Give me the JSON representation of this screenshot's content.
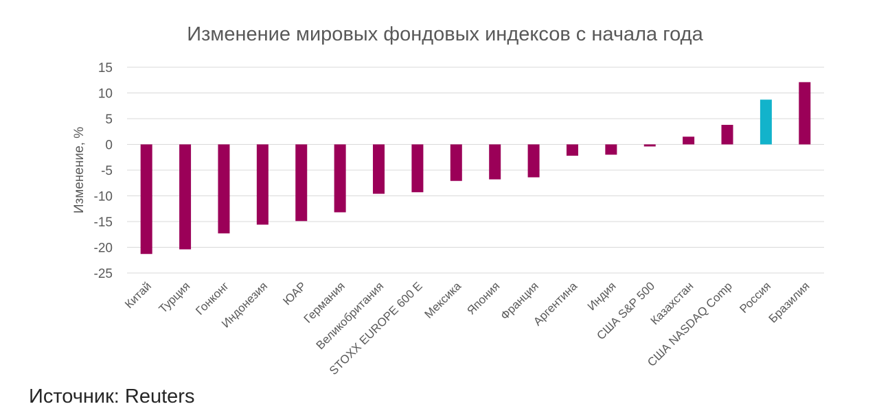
{
  "chart_data": {
    "type": "bar",
    "title": "Изменение мировых фондовых индексов с начала года",
    "xlabel": "",
    "ylabel": "Изменение, %",
    "ylim": [
      -25,
      15
    ],
    "yticks": [
      15,
      10,
      5,
      0,
      -5,
      -10,
      -15,
      -20,
      -25
    ],
    "grid": true,
    "categories": [
      "Китай",
      "Турция",
      "Гонконг",
      "Индонезия",
      "ЮАР",
      "Германия",
      "Великобритания",
      "STOXX EUROPE 600 E",
      "Мексика",
      "Япония",
      "Франция",
      "Аргентина",
      "Индия",
      "США S&P 500",
      "Казахстан",
      "США NASDAQ Comp",
      "Россия",
      "Бразилия"
    ],
    "values": [
      -21.3,
      -20.4,
      -17.3,
      -15.6,
      -14.9,
      -13.2,
      -9.6,
      -9.3,
      -7.1,
      -6.8,
      -6.4,
      -2.2,
      -2.0,
      -0.4,
      1.5,
      3.8,
      8.7,
      12.1
    ],
    "colors": [
      "#9B0058",
      "#9B0058",
      "#9B0058",
      "#9B0058",
      "#9B0058",
      "#9B0058",
      "#9B0058",
      "#9B0058",
      "#9B0058",
      "#9B0058",
      "#9B0058",
      "#9B0058",
      "#9B0058",
      "#9B0058",
      "#9B0058",
      "#9B0058",
      "#12B3CB",
      "#9B0058"
    ]
  },
  "source": "Источник: Reuters"
}
